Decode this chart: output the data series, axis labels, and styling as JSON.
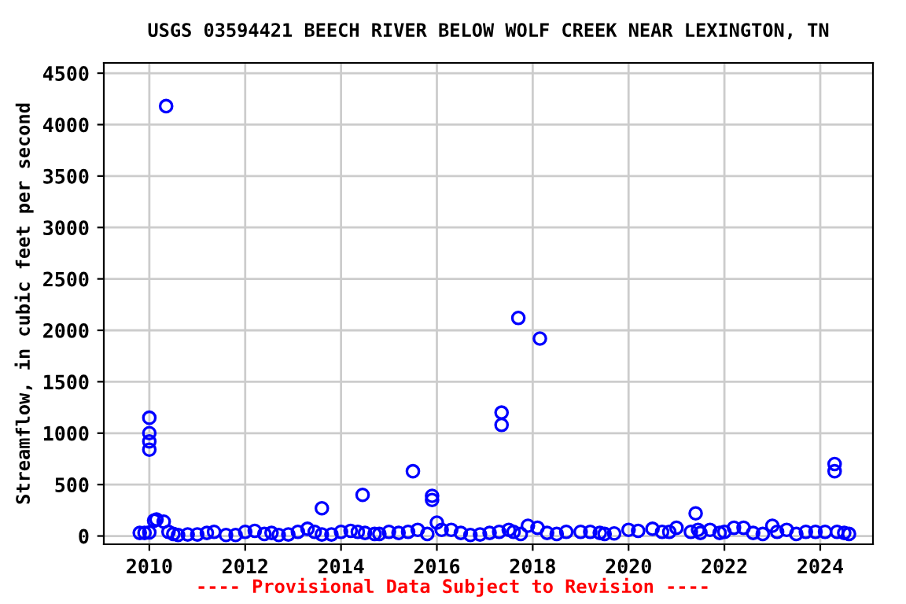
{
  "chart_data": {
    "type": "scatter",
    "title": "USGS 03594421 BEECH RIVER BELOW WOLF CREEK NEAR LEXINGTON, TN",
    "ylabel": "Streamflow, in cubic feet per second",
    "annotations": [
      "---- Provisional Data Subject to Revision ----"
    ],
    "x": [
      2009.8,
      2009.9,
      2010.0,
      2010.0,
      2010.0,
      2010.0,
      2010.0,
      2010.1,
      2010.15,
      2010.35,
      2010.3,
      2010.4,
      2010.5,
      2010.6,
      2010.8,
      2011.0,
      2011.2,
      2011.35,
      2011.6,
      2011.8,
      2012.0,
      2012.2,
      2012.4,
      2012.55,
      2012.7,
      2012.9,
      2013.1,
      2013.3,
      2013.45,
      2013.6,
      2013.6,
      2013.8,
      2014.0,
      2014.2,
      2014.35,
      2014.45,
      2014.5,
      2014.7,
      2014.8,
      2015.0,
      2015.2,
      2015.4,
      2015.5,
      2015.6,
      2015.8,
      2015.9,
      2015.9,
      2016.0,
      2016.1,
      2016.3,
      2016.5,
      2016.7,
      2016.9,
      2017.1,
      2017.3,
      2017.35,
      2017.35,
      2017.5,
      2017.6,
      2017.7,
      2017.75,
      2017.9,
      2018.1,
      2018.15,
      2018.3,
      2018.5,
      2018.7,
      2019.0,
      2019.2,
      2019.4,
      2019.5,
      2019.7,
      2020.0,
      2020.2,
      2020.5,
      2020.7,
      2020.85,
      2021.0,
      2021.3,
      2021.4,
      2021.45,
      2021.5,
      2021.7,
      2021.9,
      2022.0,
      2022.2,
      2022.4,
      2022.6,
      2022.8,
      2023.0,
      2023.1,
      2023.3,
      2023.5,
      2023.7,
      2023.9,
      2024.1,
      2024.3,
      2024.3,
      2024.35,
      2024.5,
      2024.6
    ],
    "series": [
      {
        "color": "#0000ff",
        "values": [
          30,
          30,
          35,
          1150,
          1000,
          920,
          840,
          150,
          160,
          4180,
          140,
          40,
          20,
          10,
          15,
          15,
          30,
          40,
          10,
          10,
          40,
          50,
          20,
          30,
          10,
          15,
          40,
          70,
          40,
          270,
          15,
          15,
          40,
          50,
          40,
          400,
          30,
          20,
          20,
          40,
          30,
          40,
          630,
          60,
          20,
          350,
          390,
          130,
          60,
          60,
          30,
          10,
          15,
          30,
          40,
          1200,
          1080,
          60,
          40,
          2120,
          20,
          100,
          80,
          1920,
          30,
          20,
          40,
          40,
          40,
          30,
          20,
          25,
          60,
          50,
          70,
          40,
          40,
          80,
          40,
          220,
          60,
          30,
          60,
          30,
          40,
          80,
          80,
          30,
          20,
          100,
          40,
          60,
          20,
          40,
          40,
          40,
          700,
          630,
          40,
          30,
          20
        ]
      }
    ],
    "xlim": [
      2009.05,
      2025.1
    ],
    "ylim": [
      -80,
      4600
    ],
    "xticks": [
      2010,
      2012,
      2014,
      2016,
      2018,
      2020,
      2022,
      2024
    ],
    "yticks": [
      0,
      500,
      1000,
      1500,
      2000,
      2500,
      3000,
      3500,
      4000,
      4500
    ],
    "grid": true,
    "marker": "circle"
  }
}
